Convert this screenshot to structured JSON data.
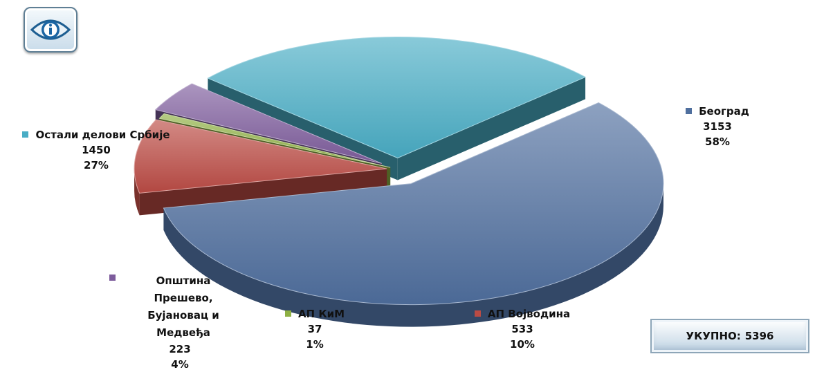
{
  "header": {
    "logo_icon": "info-eye-icon"
  },
  "chart_data": {
    "type": "pie",
    "style": "3d-exploded",
    "slices": [
      {
        "name": "Београд",
        "value": 3153,
        "percent": "58%",
        "color": "#4f6f9e"
      },
      {
        "name": "АП Војводина",
        "value": 533,
        "percent": "10%",
        "color": "#bb4b44"
      },
      {
        "name": "АП КиМ",
        "value": 37,
        "percent": "1%",
        "color": "#8eb043"
      },
      {
        "name": "Општина Прешево, Бујановац и Медвеђа",
        "value": 223,
        "percent": "4%",
        "color": "#7d5c9c"
      },
      {
        "name": "Остали делови Србије",
        "value": 1450,
        "percent": "27%",
        "color": "#49adc5"
      }
    ],
    "total": {
      "label": "УКУПНО:",
      "value": 5396
    }
  }
}
